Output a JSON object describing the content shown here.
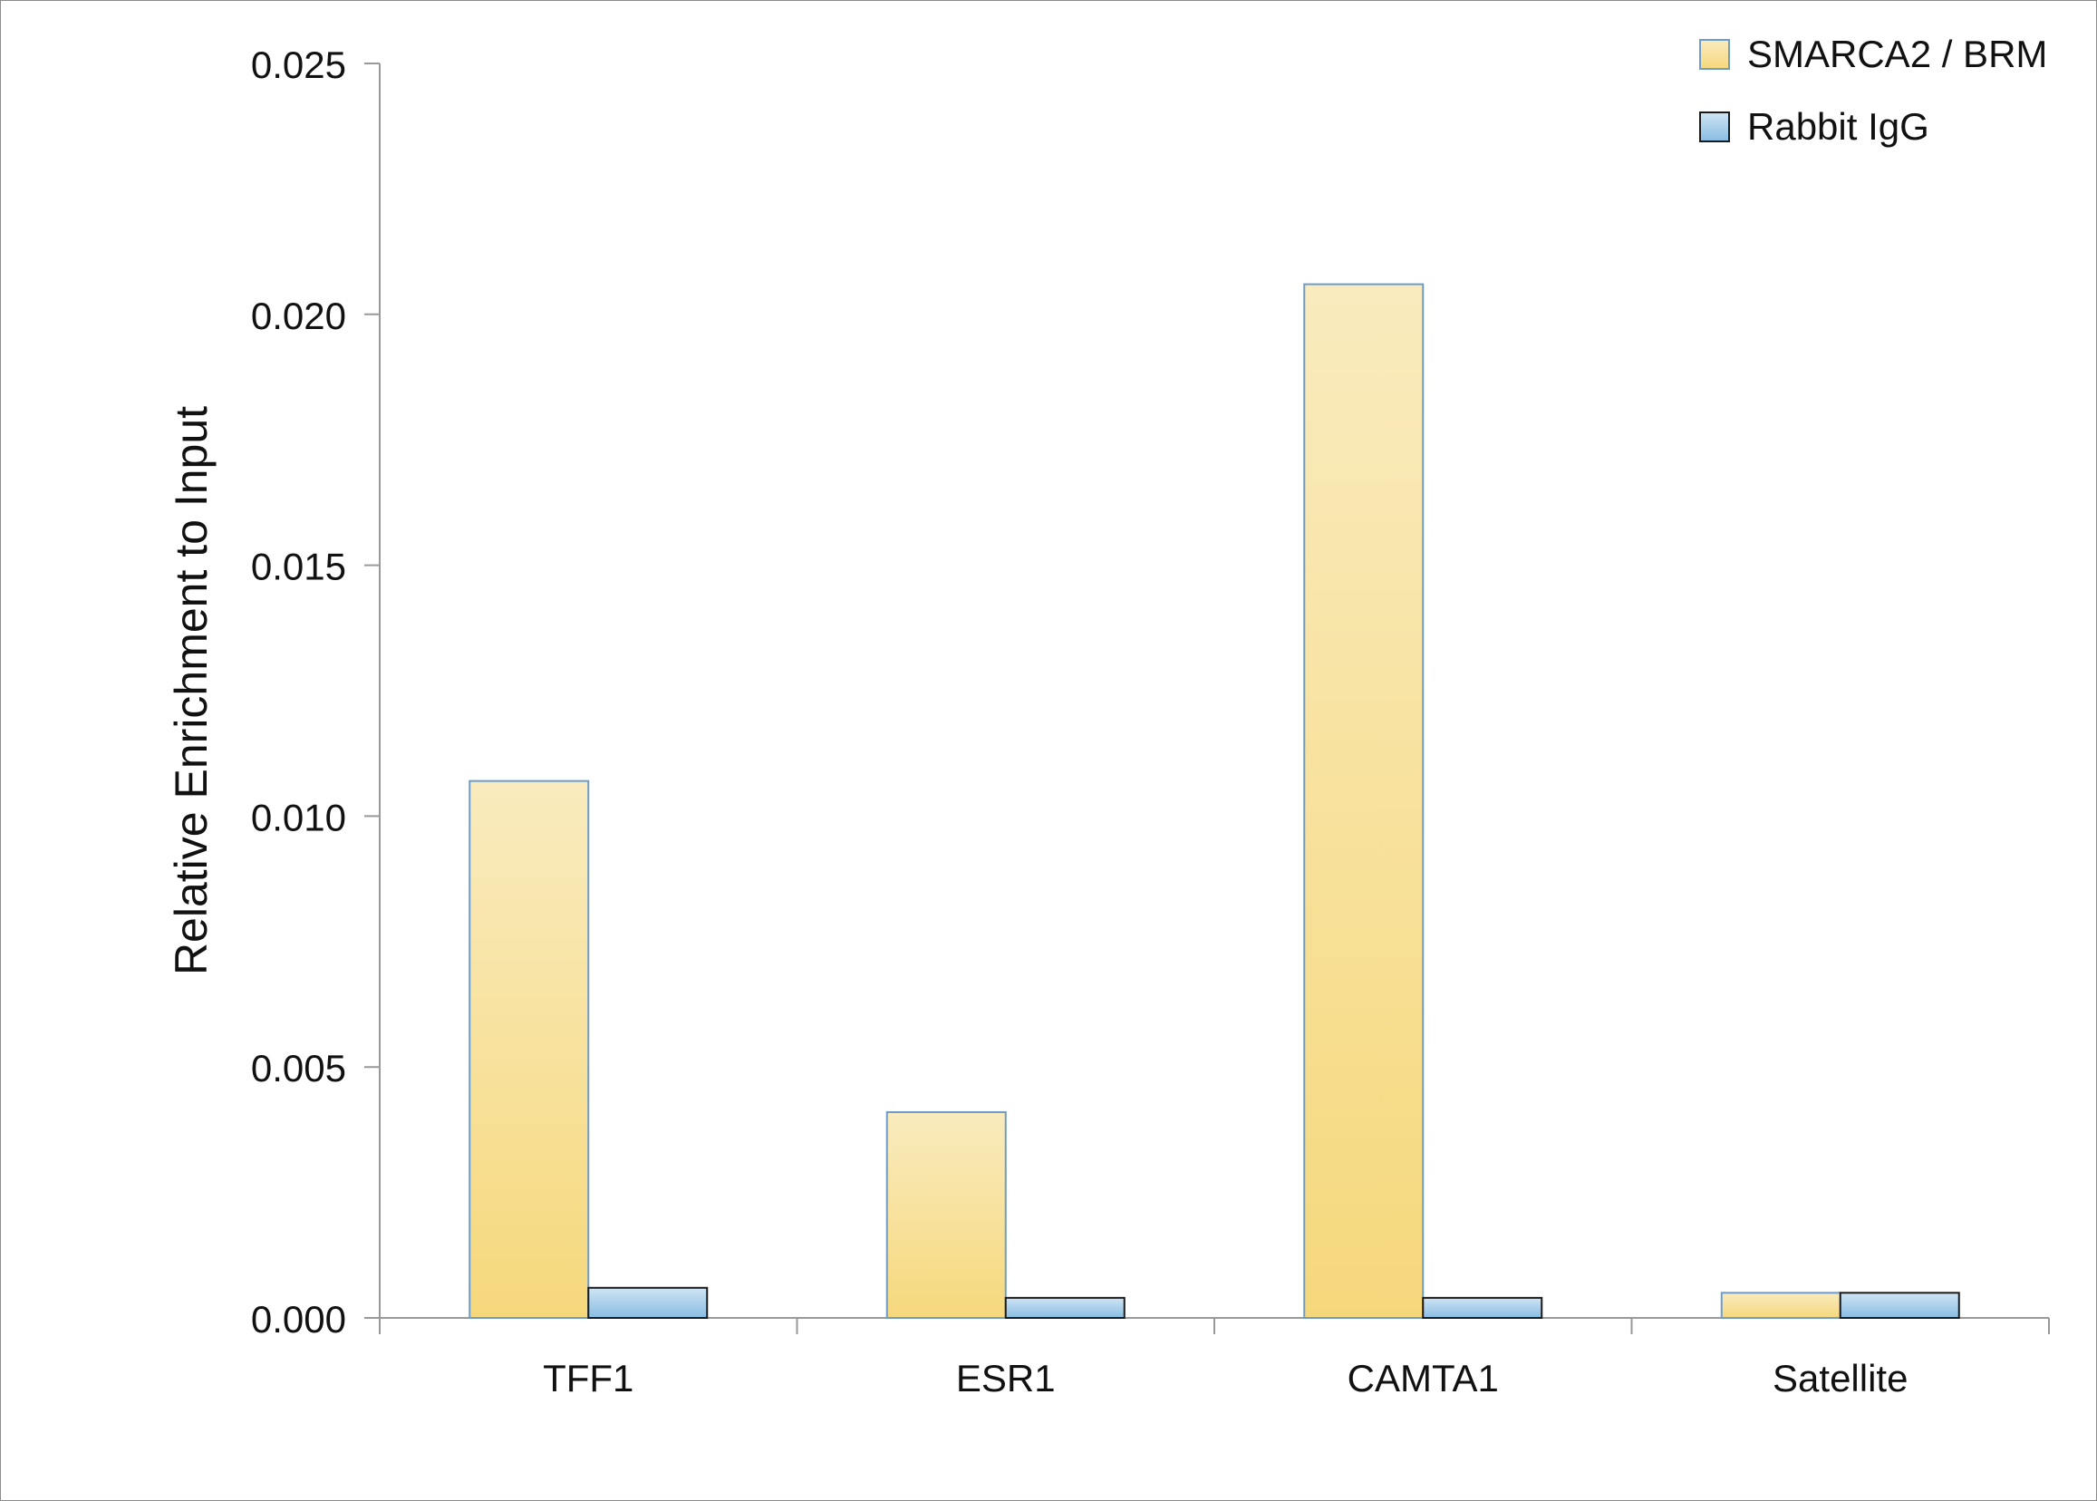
{
  "chart_data": {
    "type": "bar",
    "title": "",
    "xlabel": "",
    "ylabel": "Relative Enrichment to Input",
    "categories": [
      "TFF1",
      "ESR1",
      "CAMTA1",
      "Satellite"
    ],
    "series": [
      {
        "name": "SMARCA2 / BRM",
        "values": [
          0.0107,
          0.0041,
          0.0206,
          0.0005
        ],
        "color_top": "#f9ebbe",
        "color_bottom": "#f6d87c",
        "stroke": "#6d9cc9"
      },
      {
        "name": "Rabbit IgG",
        "values": [
          0.0006,
          0.0004,
          0.0004,
          0.0005
        ],
        "color_top": "#cfe4f4",
        "color_bottom": "#88bde2",
        "stroke": "#1a1a1a"
      }
    ],
    "ylim": [
      0,
      0.025
    ],
    "yticks": [
      "0.000",
      "0.005",
      "0.010",
      "0.015",
      "0.020",
      "0.025"
    ],
    "grid": false,
    "legend_position": "top-right"
  }
}
